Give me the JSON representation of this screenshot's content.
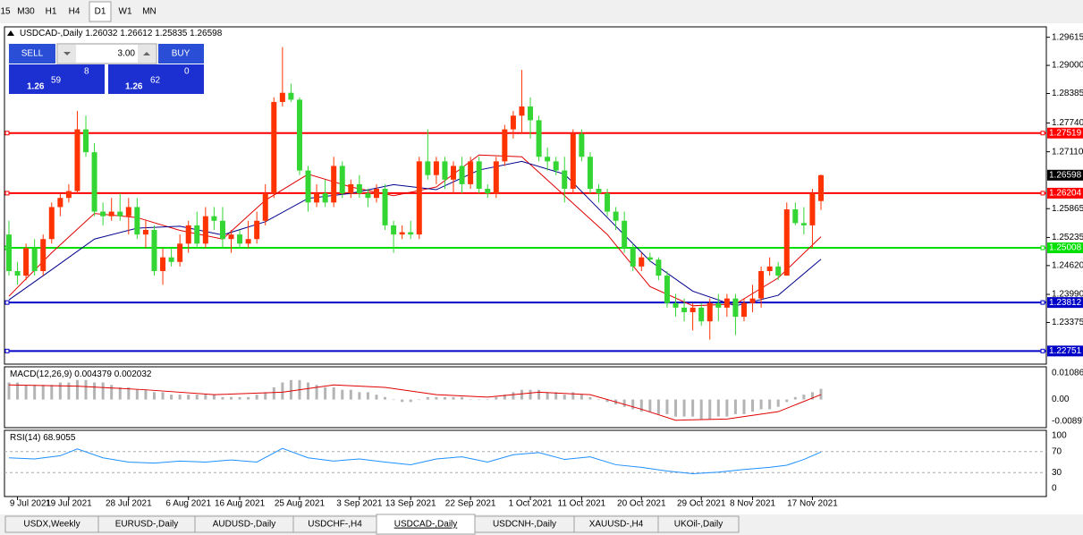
{
  "timeframes": [
    "15",
    "M30",
    "H1",
    "H4",
    "D1",
    "W1",
    "MN"
  ],
  "active_timeframe": 4,
  "trade_panel": {
    "sell": "SELL",
    "buy": "BUY",
    "lot": "3.00",
    "bid": {
      "prefix": "1.26",
      "big": "59",
      "small": "8"
    },
    "ask": {
      "prefix": "1.26",
      "big": "62",
      "small": "0"
    }
  },
  "tabs": [
    "USDX,Weekly",
    "EURUSD-,Daily",
    "AUDUSD-,Daily",
    "USDCHF-,H4",
    "USDCAD-,Daily",
    "USDCNH-,Daily",
    "XAUUSD-,H4",
    "UKOil-,Daily"
  ],
  "active_tab": 4,
  "chart_data": [
    {
      "type": "candlestick",
      "title": "USDCAD-,Daily",
      "up_color": "#ff3300",
      "down_color": "#33d633",
      "ylim": [
        1.22464,
        1.29843
      ],
      "yticks": [
        1.29615,
        {
          "value": 1.29,
          "label": "1.29000"
        },
        1.28385,
        {
          "value": 1.2774,
          "label": "1.27740"
        },
        {
          "value": 1.2711,
          "label": "1.27110"
        },
        1.25865,
        1.25235,
        {
          "value": 1.2462,
          "label": "1.24620"
        },
        {
          "value": 1.2399,
          "label": "1.23990"
        },
        1.23375
      ],
      "hlines": [
        {
          "value": 1.27519,
          "color": "#ff0000"
        },
        {
          "value": 1.26204,
          "color": "#ff0000"
        },
        {
          "value": 1.25008,
          "color": "#00e000"
        },
        {
          "value": 1.23812,
          "color": "#0000c8"
        },
        {
          "value": 1.22751,
          "color": "#0000c8"
        }
      ],
      "xticks": [
        {
          "value": 1,
          "label": "9 Jul 2021"
        },
        {
          "value": 7,
          "label": "19 Jul 2021"
        },
        {
          "value": 14,
          "label": "28 Jul 2021"
        },
        {
          "value": 21,
          "label": "6 Aug 2021"
        },
        {
          "value": 27,
          "label": "16 Aug 2021"
        },
        {
          "value": 34,
          "label": "25 Aug 2021"
        },
        {
          "value": 41,
          "label": "3 Sep 2021"
        },
        {
          "value": 47,
          "label": "13 Sep 2021"
        },
        {
          "value": 54,
          "label": "22 Sep 2021"
        },
        {
          "value": 61,
          "label": "1 Oct 2021"
        },
        {
          "value": 67,
          "label": "11 Oct 2021"
        },
        {
          "value": 74,
          "label": "20 Oct 2021"
        },
        {
          "value": 81,
          "label": "29 Oct 2021"
        },
        {
          "value": 87,
          "label": "8 Nov 2021"
        },
        {
          "value": 94,
          "label": "17 Nov 2021"
        }
      ],
      "candles": [
        [
          1.253,
          1.256,
          1.244,
          1.245
        ],
        [
          1.245,
          1.247,
          1.242,
          1.244
        ],
        [
          1.244,
          1.251,
          1.243,
          1.25
        ],
        [
          1.25,
          1.252,
          1.244,
          1.245
        ],
        [
          1.245,
          1.253,
          1.244,
          1.252
        ],
        [
          1.252,
          1.26,
          1.251,
          1.259
        ],
        [
          1.259,
          1.262,
          1.257,
          1.261
        ],
        [
          1.261,
          1.264,
          1.26,
          1.2625
        ],
        [
          1.2625,
          1.28,
          1.262,
          1.276
        ],
        [
          1.276,
          1.279,
          1.27,
          1.271
        ],
        [
          1.271,
          1.273,
          1.257,
          1.258
        ],
        [
          1.258,
          1.26,
          1.255,
          1.257
        ],
        [
          1.257,
          1.261,
          1.256,
          1.258
        ],
        [
          1.258,
          1.262,
          1.256,
          1.257
        ],
        [
          1.257,
          1.261,
          1.253,
          1.259
        ],
        [
          1.259,
          1.261,
          1.252,
          1.253
        ],
        [
          1.253,
          1.256,
          1.25,
          1.254
        ],
        [
          1.254,
          1.255,
          1.244,
          1.245
        ],
        [
          1.245,
          1.25,
          1.242,
          1.248
        ],
        [
          1.248,
          1.25,
          1.246,
          1.247
        ],
        [
          1.247,
          1.253,
          1.246,
          1.251
        ],
        [
          1.251,
          1.256,
          1.249,
          1.255
        ],
        [
          1.255,
          1.258,
          1.25,
          1.251
        ],
        [
          1.251,
          1.259,
          1.25,
          1.257
        ],
        [
          1.257,
          1.259,
          1.254,
          1.256
        ],
        [
          1.256,
          1.259,
          1.25,
          1.252
        ],
        [
          1.252,
          1.254,
          1.249,
          1.253
        ],
        [
          1.253,
          1.254,
          1.25,
          1.251
        ],
        [
          1.251,
          1.256,
          1.25,
          1.252
        ],
        [
          1.252,
          1.258,
          1.251,
          1.256
        ],
        [
          1.256,
          1.264,
          1.255,
          1.262
        ],
        [
          1.262,
          1.283,
          1.261,
          1.282
        ],
        [
          1.282,
          1.294,
          1.281,
          1.284
        ],
        [
          1.284,
          1.286,
          1.282,
          1.2825
        ],
        [
          1.2825,
          1.283,
          1.266,
          1.267
        ],
        [
          1.267,
          1.268,
          1.258,
          1.26
        ],
        [
          1.26,
          1.264,
          1.259,
          1.262
        ],
        [
          1.262,
          1.265,
          1.259,
          1.26
        ],
        [
          1.26,
          1.27,
          1.259,
          1.268
        ],
        [
          1.268,
          1.269,
          1.261,
          1.262
        ],
        [
          1.262,
          1.265,
          1.261,
          1.264
        ],
        [
          1.264,
          1.266,
          1.261,
          1.262
        ],
        [
          1.262,
          1.263,
          1.259,
          1.261
        ],
        [
          1.261,
          1.264,
          1.26,
          1.263
        ],
        [
          1.263,
          1.264,
          1.254,
          1.255
        ],
        [
          1.255,
          1.256,
          1.249,
          1.253
        ],
        [
          1.253,
          1.255,
          1.252,
          1.2535
        ],
        [
          1.2535,
          1.256,
          1.252,
          1.253
        ],
        [
          1.253,
          1.27,
          1.252,
          1.269
        ],
        [
          1.269,
          1.276,
          1.265,
          1.266
        ],
        [
          1.266,
          1.27,
          1.264,
          1.269
        ],
        [
          1.269,
          1.27,
          1.263,
          1.265
        ],
        [
          1.265,
          1.269,
          1.262,
          1.268
        ],
        [
          1.268,
          1.27,
          1.262,
          1.264
        ],
        [
          1.264,
          1.27,
          1.263,
          1.269
        ],
        [
          1.269,
          1.27,
          1.262,
          1.263
        ],
        [
          1.263,
          1.264,
          1.261,
          1.262
        ],
        [
          1.262,
          1.27,
          1.261,
          1.269
        ],
        [
          1.269,
          1.277,
          1.268,
          1.276
        ],
        [
          1.276,
          1.28,
          1.274,
          1.279
        ],
        [
          1.279,
          1.289,
          1.275,
          1.281
        ],
        [
          1.281,
          1.283,
          1.274,
          1.278
        ],
        [
          1.278,
          1.279,
          1.269,
          1.27
        ],
        [
          1.27,
          1.272,
          1.267,
          1.269
        ],
        [
          1.269,
          1.27,
          1.266,
          1.267
        ],
        [
          1.267,
          1.27,
          1.26,
          1.263
        ],
        [
          1.263,
          1.276,
          1.262,
          1.275
        ],
        [
          1.275,
          1.276,
          1.269,
          1.27
        ],
        [
          1.27,
          1.271,
          1.262,
          1.263
        ],
        [
          1.263,
          1.264,
          1.26,
          1.262
        ],
        [
          1.262,
          1.263,
          1.257,
          1.258
        ],
        [
          1.258,
          1.259,
          1.254,
          1.256
        ],
        [
          1.256,
          1.258,
          1.249,
          1.25
        ],
        [
          1.25,
          1.251,
          1.245,
          1.246
        ],
        [
          1.246,
          1.249,
          1.245,
          1.248
        ],
        [
          1.248,
          1.249,
          1.247,
          1.2475
        ],
        [
          1.2475,
          1.248,
          1.243,
          1.244
        ],
        [
          1.244,
          1.245,
          1.237,
          1.238
        ],
        [
          1.238,
          1.24,
          1.235,
          1.237
        ],
        [
          1.237,
          1.239,
          1.234,
          1.236
        ],
        [
          1.236,
          1.238,
          1.232,
          1.237
        ],
        [
          1.237,
          1.238,
          1.233,
          1.234
        ],
        [
          1.234,
          1.239,
          1.23,
          1.238
        ],
        [
          1.238,
          1.24,
          1.234,
          1.237
        ],
        [
          1.237,
          1.24,
          1.235,
          1.239
        ],
        [
          1.239,
          1.24,
          1.231,
          1.235
        ],
        [
          1.235,
          1.239,
          1.234,
          1.238
        ],
        [
          1.238,
          1.242,
          1.236,
          1.239
        ],
        [
          1.239,
          1.246,
          1.237,
          1.245
        ],
        [
          1.245,
          1.248,
          1.244,
          1.246
        ],
        [
          1.246,
          1.247,
          1.243,
          1.244
        ],
        [
          1.244,
          1.26,
          1.244,
          1.2585
        ],
        [
          1.2585,
          1.26,
          1.255,
          1.2555
        ],
        [
          1.2555,
          1.259,
          1.253,
          1.255
        ],
        [
          1.255,
          1.263,
          1.25,
          1.262
        ],
        [
          1.26032,
          1.26612,
          1.25835,
          1.26598
        ]
      ],
      "lines": [
        {
          "color": "#e00000",
          "x": [
            0,
            5,
            10,
            15,
            20,
            25,
            30,
            35,
            40,
            45,
            50,
            55,
            60,
            65,
            70,
            75,
            80,
            85,
            90,
            95
          ],
          "values": [
            1.2395,
            1.249,
            1.2576,
            1.2567,
            1.2539,
            1.252,
            1.2605,
            1.2662,
            1.2634,
            1.2615,
            1.2634,
            1.2704,
            1.27,
            1.2615,
            1.253,
            1.2416,
            1.2374,
            1.2378,
            1.2435,
            1.2525
          ]
        },
        {
          "color": "#00008b",
          "x": [
            0,
            5,
            10,
            15,
            20,
            25,
            30,
            35,
            40,
            45,
            50,
            55,
            60,
            65,
            70,
            75,
            80,
            85,
            90,
            95
          ],
          "values": [
            1.2387,
            1.2453,
            1.252,
            1.2544,
            1.2548,
            1.2529,
            1.2558,
            1.2609,
            1.262,
            1.2639,
            1.2628,
            1.2671,
            1.269,
            1.2662,
            1.2567,
            1.2472,
            1.2406,
            1.2374,
            1.2397,
            1.2476
          ]
        }
      ]
    },
    {
      "type": "macd",
      "title": "MACD(12,26,9)",
      "ylim": [
        -0.01155,
        0.01344
      ],
      "yticks": [
        0.010869,
        {
          "value": 0,
          "label": "0.00"
        },
        -0.008974
      ],
      "histogram_color": "#b4b4b4",
      "values": [
        0.007,
        0.007,
        0.006,
        0.006,
        0.006,
        0.006,
        0.007,
        0.007,
        0.008,
        0.008,
        0.007,
        0.007,
        0.006,
        0.005,
        0.005,
        0.004,
        0.004,
        0.003,
        0.003,
        0.002,
        0.002,
        0.002,
        0.002,
        0.002,
        0.002,
        0.001,
        0.001,
        0.001,
        0.001,
        0.002,
        0.003,
        0.005,
        0.007,
        0.008,
        0.008,
        0.007,
        0.006,
        0.005,
        0.005,
        0.004,
        0.004,
        0.003,
        0.003,
        0.002,
        0.001,
        0,
        -0.001,
        -0.001,
        0,
        0.001,
        0.001,
        0.001,
        0.001,
        0.001,
        0,
        0,
        0,
        0.001,
        0.002,
        0.003,
        0.004,
        0.004,
        0.004,
        0.003,
        0.003,
        0.002,
        0.003,
        0.002,
        0.001,
        0,
        -0.001,
        -0.002,
        -0.003,
        -0.004,
        -0.005,
        -0.005,
        -0.006,
        -0.006,
        -0.007,
        -0.007,
        -0.007,
        -0.008,
        -0.008,
        -0.007,
        -0.007,
        -0.006,
        -0.006,
        -0.005,
        -0.004,
        -0.004,
        -0.003,
        -0.001,
        0.001,
        0.002,
        0.003,
        0.004379
      ],
      "signal": {
        "color": "#e00000",
        "x": [
          0,
          8,
          16,
          24,
          32,
          38,
          44,
          50,
          56,
          62,
          68,
          74,
          78,
          84,
          90,
          95
        ],
        "values": [
          0.006,
          0.0055,
          0.004,
          0.002,
          0.003,
          0.006,
          0.005,
          0.002,
          0.001,
          0.003,
          0.002,
          -0.004,
          -0.0085,
          -0.008,
          -0.005,
          0.002032
        ]
      }
    },
    {
      "type": "line",
      "title": "RSI(14)",
      "ylim": [
        -15.3,
        110.2
      ],
      "yticks": [
        100,
        70,
        30,
        0
      ],
      "levels": [
        70,
        30
      ],
      "color": "#1e90ff",
      "x": [
        0,
        3,
        6,
        8,
        11,
        14,
        17,
        20,
        23,
        26,
        29,
        32,
        35,
        38,
        41,
        44,
        47,
        50,
        53,
        56,
        59,
        62,
        65,
        68,
        71,
        74,
        77,
        80,
        83,
        86,
        89,
        91,
        93,
        94,
        95
      ],
      "values": [
        58,
        56,
        62,
        75,
        58,
        50,
        48,
        52,
        50,
        54,
        50,
        76,
        58,
        52,
        56,
        50,
        45,
        56,
        60,
        50,
        64,
        68,
        55,
        60,
        45,
        40,
        33,
        28,
        31,
        36,
        40,
        44,
        55,
        62,
        68.9055
      ]
    }
  ]
}
